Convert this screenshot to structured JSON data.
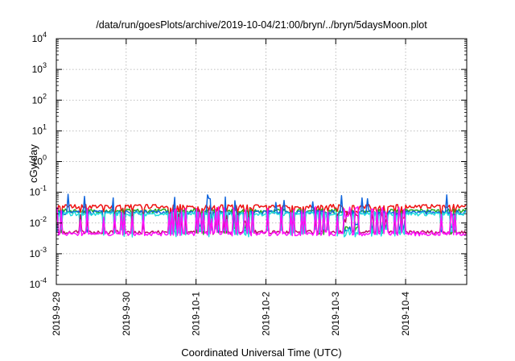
{
  "chart_data": {
    "type": "line",
    "title": "/data/run/goesPlots/archive/2019-10-04/21:00/bryn/../bryn/5daysMoon.plot",
    "xlabel": "Coordinated Universal Time (UTC)",
    "ylabel": "cGy/day",
    "yscale": "log",
    "ylim": [
      0.0001,
      10000
    ],
    "y_ticks": [
      {
        "value": 0.0001,
        "base": "10",
        "exp": "-4"
      },
      {
        "value": 0.001,
        "base": "10",
        "exp": "-3"
      },
      {
        "value": 0.01,
        "base": "10",
        "exp": "-2"
      },
      {
        "value": 0.1,
        "base": "10",
        "exp": "-1"
      },
      {
        "value": 1,
        "base": "10",
        "exp": "0"
      },
      {
        "value": 10,
        "base": "10",
        "exp": "1"
      },
      {
        "value": 100,
        "base": "10",
        "exp": "2"
      },
      {
        "value": 1000,
        "base": "10",
        "exp": "3"
      },
      {
        "value": 10000,
        "base": "10",
        "exp": "4"
      }
    ],
    "xlim": [
      "2019-09-29",
      "2019-10-04T21:00"
    ],
    "x_ticks": [
      "2019-9-29",
      "2019-9-30",
      "2019-10-1",
      "2019-10-2",
      "2019-10-3",
      "2019-10-4"
    ],
    "grid": true,
    "legend": "none",
    "series": [
      {
        "color": "#ee1111",
        "base": 0.035,
        "spike_low": 0.02
      },
      {
        "color": "#22aa22",
        "base": 0.025,
        "spike_low": 0.006
      },
      {
        "color": "#1166dd",
        "base": 0.022,
        "spike_low": 0.007
      },
      {
        "color": "#22dddd",
        "base": 0.02,
        "spike_low": 0.005
      },
      {
        "color": "#bb1166",
        "base": 0.005,
        "spike_high": 0.02
      },
      {
        "color": "#ff11ff",
        "base": 0.0045,
        "spike_high": 0.025
      }
    ]
  }
}
